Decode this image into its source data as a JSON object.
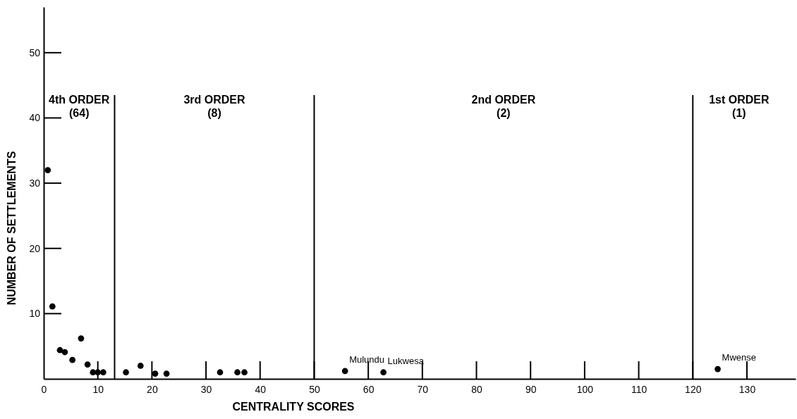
{
  "chart_data": {
    "type": "scatter",
    "xlabel": "CENTRALITY SCORES",
    "ylabel": "NUMBER OF SETTLEMENTS",
    "x": [
      0.75,
      1.6,
      3.0,
      3.9,
      5.3,
      6.9,
      8.1,
      9.1,
      10.0,
      11.0,
      15.2,
      17.9,
      20.6,
      22.7,
      32.6,
      35.8,
      37.1,
      55.7,
      62.8,
      124.6
    ],
    "series": [
      {
        "color": "#000000",
        "values": [
          32.0,
          11.1,
          4.4,
          4.1,
          2.9,
          6.2,
          2.2,
          1.0,
          1.0,
          1.0,
          1.0,
          2.0,
          0.8,
          0.8,
          1.0,
          1.0,
          1.0,
          1.2,
          1.0,
          1.5
        ]
      }
    ],
    "marker": "circle",
    "xlim": [
      0,
      139
    ],
    "ylim": [
      0,
      57
    ],
    "xticks": [
      0,
      10,
      20,
      30,
      40,
      50,
      60,
      70,
      80,
      90,
      100,
      110,
      120,
      130
    ],
    "yticks": [
      10,
      20,
      30,
      40,
      50
    ],
    "ref_lines": [
      {
        "axis": "x",
        "value": 13.1,
        "color": "#000000"
      },
      {
        "axis": "x",
        "value": 50,
        "color": "#000000"
      },
      {
        "axis": "x",
        "value": 120,
        "color": "#000000"
      }
    ],
    "annotations": [
      "4th ORDER\n(64)",
      "3rd ORDER\n(8)",
      "2nd ORDER\n(2)",
      "1st ORDER\n(1)",
      {
        "text": "Mulundu",
        "x": 55.7,
        "y": 1.2
      },
      {
        "text": "Lukwesa",
        "x": 62.8,
        "y": 1.0
      },
      {
        "text": "Mwense",
        "x": 124.6,
        "y": 1.5
      }
    ],
    "grid": false
  }
}
